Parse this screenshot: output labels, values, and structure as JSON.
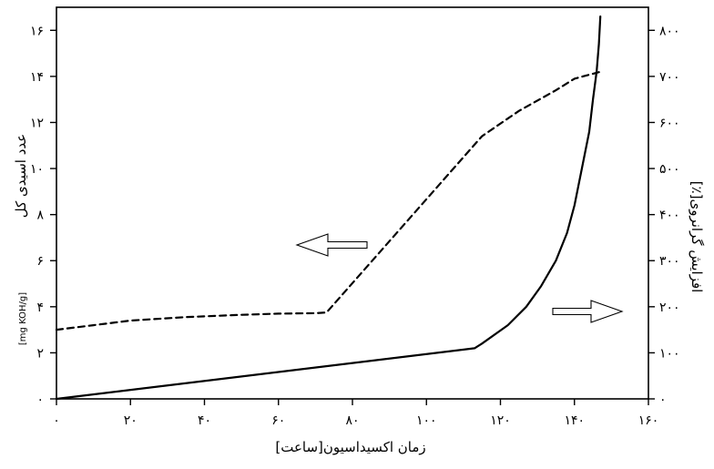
{
  "chart_data": {
    "type": "line",
    "title": "",
    "xlabel": "زمان اکسیداسیون[ساعت]",
    "ylabel_left": "عدد اسیدی کل",
    "ylabel_left_unit": "[mg KOH/g]",
    "ylabel_right": "افزایش گرانروی[٪]",
    "xlim": [
      0,
      160
    ],
    "ylim_left": [
      0,
      17
    ],
    "ylim_right": [
      0,
      850
    ],
    "x_ticks": [
      0,
      20,
      40,
      60,
      80,
      100,
      120,
      140,
      160
    ],
    "x_tick_labels": [
      "۰",
      "۲۰",
      "۴۰",
      "۶۰",
      "۸۰",
      "۱۰۰",
      "۱۲۰",
      "۱۴۰",
      "۱۶۰"
    ],
    "y_left_ticks": [
      0,
      2,
      4,
      6,
      8,
      10,
      12,
      14,
      16
    ],
    "y_left_tick_labels": [
      "۰",
      "۲",
      "۴",
      "۶",
      "۸",
      "۱۰",
      "۱۲",
      "۱۴",
      "۱۶"
    ],
    "y_right_ticks": [
      0,
      100,
      200,
      300,
      400,
      500,
      600,
      700,
      800
    ],
    "y_right_tick_labels": [
      "۰",
      "۱۰۰",
      "۲۰۰",
      "۳۰۰",
      "۴۰۰",
      "۵۰۰",
      "۶۰۰",
      "۷۰۰",
      "۸۰۰"
    ],
    "grid": false,
    "series": [
      {
        "axis": "left",
        "style": "dashed",
        "x": [
          0,
          10,
          20,
          35,
          50,
          60,
          70,
          73,
          115,
          125,
          135,
          140,
          147
        ],
        "y": [
          3.0,
          3.2,
          3.4,
          3.55,
          3.65,
          3.7,
          3.72,
          3.75,
          11.4,
          12.5,
          13.4,
          13.9,
          14.2
        ]
      },
      {
        "axis": "right",
        "style": "solid",
        "x": [
          0,
          113,
          115,
          122,
          127,
          131,
          135,
          138,
          140,
          142,
          144,
          145,
          146,
          146.6,
          147
        ],
        "y": [
          0,
          110,
          120,
          160,
          200,
          245,
          300,
          360,
          420,
          500,
          580,
          650,
          710,
          770,
          830
        ]
      }
    ],
    "annotations": [
      {
        "type": "arrow",
        "direction": "left",
        "points_to_axis": "left"
      },
      {
        "type": "arrow",
        "direction": "right",
        "points_to_axis": "right"
      }
    ]
  }
}
